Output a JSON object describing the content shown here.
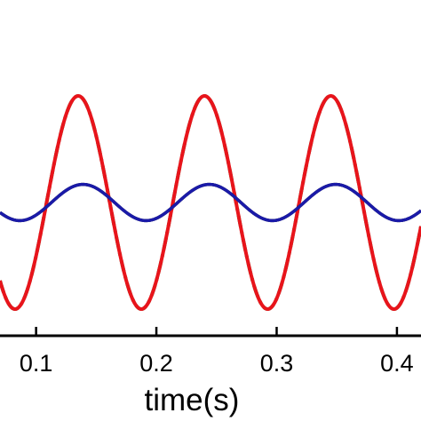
{
  "chart_data": {
    "type": "line",
    "title": "",
    "xlabel": "time(s)",
    "ylabel": "",
    "xlim": [
      0.07,
      0.42
    ],
    "ylim": [
      -1.25,
      1.9
    ],
    "x_ticks": [
      {
        "value": 0.1,
        "label": "0.1"
      },
      {
        "value": 0.2,
        "label": "0.2"
      },
      {
        "value": 0.3,
        "label": "0.3"
      },
      {
        "value": 0.4,
        "label": "0.4"
      }
    ],
    "grid": false,
    "legend": "none",
    "series": [
      {
        "color": "#2e7d32",
        "style": "dash-dot",
        "amplitude": 1.0,
        "offset": 0.0,
        "period": 0.105,
        "phase_peak": 0.135
      },
      {
        "color": "#e8141b",
        "style": "solid",
        "amplitude": 1.0,
        "offset": 0.0,
        "period": 0.105,
        "phase_peak": 0.135
      },
      {
        "color": "#000000",
        "style": "solid",
        "amplitude": 0.17,
        "offset": 0.0,
        "period": 0.105,
        "phase_peak": 0.139
      },
      {
        "color": "#1a1aa8",
        "style": "solid",
        "amplitude": 0.17,
        "offset": 0.0,
        "period": 0.105,
        "phase_peak": 0.139
      }
    ]
  }
}
